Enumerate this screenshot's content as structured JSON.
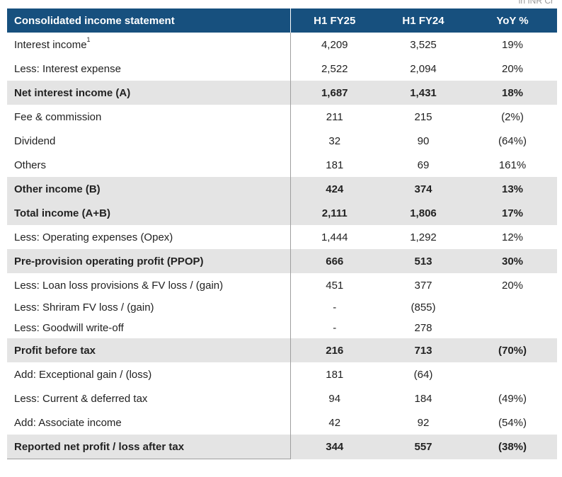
{
  "unit_note": "in INR Cr",
  "header": {
    "label": "Consolidated income statement",
    "col1": "H1 FY25",
    "col2": "H1 FY24",
    "col3": "YoY %"
  },
  "rows": [
    {
      "label": "Interest income",
      "sup": "1",
      "h1fy25": "4,209",
      "h1fy24": "3,525",
      "yoy": "19%",
      "bold": false
    },
    {
      "label": "Less: Interest expense",
      "sup": "",
      "h1fy25": "2,522",
      "h1fy24": "2,094",
      "yoy": "20%",
      "bold": false
    },
    {
      "label": "Net interest income (A)",
      "sup": "",
      "h1fy25": "1,687",
      "h1fy24": "1,431",
      "yoy": "18%",
      "bold": true
    },
    {
      "label": "Fee & commission",
      "sup": "",
      "h1fy25": "211",
      "h1fy24": "215",
      "yoy": "(2%)",
      "bold": false
    },
    {
      "label": "Dividend",
      "sup": "",
      "h1fy25": "32",
      "h1fy24": "90",
      "yoy": "(64%)",
      "bold": false
    },
    {
      "label": "Others",
      "sup": "",
      "h1fy25": "181",
      "h1fy24": "69",
      "yoy": "161%",
      "bold": false
    },
    {
      "label": "Other income (B)",
      "sup": "",
      "h1fy25": "424",
      "h1fy24": "374",
      "yoy": "13%",
      "bold": true
    },
    {
      "label": "Total income (A+B)",
      "sup": "",
      "h1fy25": "2,111",
      "h1fy24": "1,806",
      "yoy": "17%",
      "bold": true
    },
    {
      "label": "Less: Operating expenses (Opex)",
      "sup": "",
      "h1fy25": "1,444",
      "h1fy24": "1,292",
      "yoy": "12%",
      "bold": false
    },
    {
      "label": "Pre-provision operating profit (PPOP)",
      "sup": "",
      "h1fy25": "666",
      "h1fy24": "513",
      "yoy": "30%",
      "bold": true
    },
    {
      "label": "Less: Loan loss provisions & FV loss / (gain)",
      "sup": "",
      "h1fy25": "451",
      "h1fy24": "377",
      "yoy": "20%",
      "bold": false
    },
    {
      "label": "Less: Shriram FV loss / (gain)",
      "sup": "",
      "h1fy25": "-",
      "h1fy24": "(855)",
      "yoy": "",
      "bold": false,
      "short": true
    },
    {
      "label": "Less: Goodwill write-off",
      "sup": "",
      "h1fy25": "-",
      "h1fy24": "278",
      "yoy": "",
      "bold": false,
      "short": true
    },
    {
      "label": "Profit before tax",
      "sup": "",
      "h1fy25": "216",
      "h1fy24": "713",
      "yoy": "(70%)",
      "bold": true
    },
    {
      "label": "Add: Exceptional gain / (loss)",
      "sup": "",
      "h1fy25": "181",
      "h1fy24": "(64)",
      "yoy": "",
      "bold": false
    },
    {
      "label": "Less: Current & deferred tax",
      "sup": "",
      "h1fy25": "94",
      "h1fy24": "184",
      "yoy": "(49%)",
      "bold": false
    },
    {
      "label": "Add: Associate income",
      "sup": "",
      "h1fy25": "42",
      "h1fy24": "92",
      "yoy": "(54%)",
      "bold": false
    },
    {
      "label": "Reported net profit / loss after tax",
      "sup": "",
      "h1fy25": "344",
      "h1fy24": "557",
      "yoy": "(38%)",
      "bold": true
    }
  ]
}
